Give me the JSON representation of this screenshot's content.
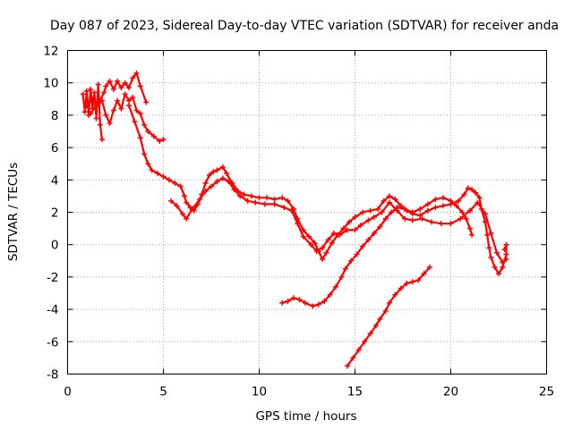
{
  "chart_data": {
    "type": "scatter",
    "title": "Day 087 of 2023, Sidereal Day-to-day VTEC variation (SDTVAR) for receiver anda",
    "xlabel": "GPS time / hours",
    "ylabel": "SDTVAR / TECUs",
    "xlim": [
      0,
      25
    ],
    "ylim": [
      -8,
      12
    ],
    "xticks": [
      0,
      5,
      10,
      15,
      20,
      25
    ],
    "yticks": [
      -8,
      -6,
      -4,
      -2,
      0,
      2,
      4,
      6,
      8,
      10,
      12
    ],
    "grid": true,
    "legend": "none",
    "colors": {
      "series": "#ff0000"
    },
    "series": [
      {
        "segments": [
          [
            [
              0.8,
              9.3
            ],
            [
              0.9,
              8.2
            ],
            [
              1.0,
              9.5
            ],
            [
              1.1,
              8.0
            ],
            [
              1.2,
              9.6
            ],
            [
              1.3,
              8.4
            ],
            [
              1.4,
              9.4
            ],
            [
              1.5,
              7.8
            ],
            [
              1.6,
              9.9
            ],
            [
              1.7,
              7.4
            ],
            [
              1.8,
              6.5
            ]
          ],
          [
            [
              1.0,
              8.6
            ],
            [
              1.3,
              9.0
            ],
            [
              1.6,
              8.7
            ],
            [
              1.9,
              9.4
            ],
            [
              2.0,
              9.8
            ],
            [
              2.2,
              10.1
            ],
            [
              2.4,
              9.6
            ],
            [
              2.6,
              10.1
            ],
            [
              2.8,
              9.7
            ],
            [
              3.0,
              10.0
            ],
            [
              3.2,
              9.7
            ],
            [
              3.4,
              10.3
            ],
            [
              3.6,
              10.6
            ],
            [
              3.8,
              9.8
            ],
            [
              4.1,
              8.8
            ]
          ],
          [
            [
              1.2,
              8.1
            ],
            [
              1.5,
              8.6
            ],
            [
              1.8,
              8.9
            ],
            [
              2.0,
              8.0
            ],
            [
              2.2,
              7.5
            ],
            [
              2.4,
              8.3
            ],
            [
              2.6,
              8.9
            ],
            [
              2.8,
              8.4
            ],
            [
              3.0,
              9.3
            ],
            [
              3.2,
              8.9
            ],
            [
              3.4,
              9.1
            ],
            [
              3.6,
              8.3
            ],
            [
              3.8,
              8.1
            ],
            [
              4.0,
              7.4
            ],
            [
              4.2,
              7.0
            ],
            [
              4.5,
              6.7
            ],
            [
              4.8,
              6.4
            ],
            [
              5.0,
              6.5
            ]
          ],
          [
            [
              3.2,
              8.6
            ],
            [
              3.5,
              7.6
            ],
            [
              3.8,
              6.6
            ],
            [
              4.0,
              5.6
            ],
            [
              4.2,
              5.0
            ],
            [
              4.4,
              4.6
            ],
            [
              4.7,
              4.4
            ],
            [
              5.0,
              4.2
            ],
            [
              5.3,
              4.0
            ],
            [
              5.6,
              3.8
            ],
            [
              5.9,
              3.6
            ],
            [
              6.1,
              3.0
            ],
            [
              6.2,
              2.6
            ],
            [
              6.4,
              2.3
            ],
            [
              6.6,
              2.1
            ],
            [
              6.8,
              2.5
            ],
            [
              7.0,
              3.1
            ],
            [
              7.2,
              3.8
            ],
            [
              7.4,
              4.3
            ],
            [
              7.6,
              4.5
            ],
            [
              7.8,
              4.6
            ],
            [
              8.1,
              4.8
            ],
            [
              8.3,
              4.4
            ],
            [
              8.6,
              3.8
            ],
            [
              8.9,
              3.3
            ],
            [
              9.2,
              3.1
            ],
            [
              9.6,
              3.0
            ],
            [
              10.0,
              2.9
            ],
            [
              10.4,
              2.9
            ],
            [
              10.8,
              2.8
            ],
            [
              11.2,
              2.9
            ],
            [
              11.5,
              2.7
            ],
            [
              11.8,
              2.2
            ],
            [
              12.0,
              1.6
            ],
            [
              12.3,
              0.9
            ],
            [
              12.6,
              0.5
            ],
            [
              12.9,
              0.1
            ],
            [
              13.1,
              -0.4
            ],
            [
              13.3,
              -0.9
            ],
            [
              13.5,
              -0.5
            ],
            [
              13.8,
              0.1
            ],
            [
              14.1,
              0.6
            ],
            [
              14.4,
              1.0
            ],
            [
              14.7,
              1.4
            ],
            [
              15.0,
              1.7
            ],
            [
              15.4,
              2.0
            ],
            [
              15.8,
              2.1
            ],
            [
              16.2,
              2.2
            ],
            [
              16.5,
              2.7
            ],
            [
              16.8,
              3.0
            ],
            [
              17.1,
              2.8
            ],
            [
              17.4,
              2.4
            ],
            [
              17.7,
              2.1
            ],
            [
              18.0,
              1.9
            ],
            [
              18.4,
              1.8
            ],
            [
              18.8,
              2.1
            ],
            [
              19.2,
              2.3
            ],
            [
              19.6,
              2.4
            ],
            [
              20.0,
              2.5
            ],
            [
              20.4,
              2.7
            ],
            [
              20.7,
              3.1
            ],
            [
              20.9,
              3.5
            ],
            [
              21.1,
              3.4
            ],
            [
              21.3,
              3.2
            ],
            [
              21.5,
              2.9
            ],
            [
              21.6,
              2.2
            ],
            [
              21.8,
              1.4
            ],
            [
              21.9,
              0.6
            ],
            [
              22.0,
              -0.2
            ],
            [
              22.1,
              -0.8
            ],
            [
              22.3,
              -1.4
            ],
            [
              22.5,
              -1.8
            ],
            [
              22.7,
              -1.4
            ],
            [
              22.9,
              -0.6
            ],
            [
              22.9,
              0.0
            ],
            [
              22.8,
              -0.3
            ]
          ],
          [
            [
              5.4,
              2.7
            ],
            [
              5.7,
              2.4
            ],
            [
              6.0,
              1.9
            ],
            [
              6.2,
              1.6
            ],
            [
              6.5,
              2.2
            ],
            [
              6.9,
              2.8
            ],
            [
              7.2,
              3.3
            ],
            [
              7.5,
              3.6
            ],
            [
              7.8,
              3.9
            ],
            [
              8.1,
              4.1
            ],
            [
              8.4,
              3.9
            ],
            [
              8.7,
              3.4
            ],
            [
              9.0,
              3.0
            ],
            [
              9.4,
              2.7
            ],
            [
              9.8,
              2.6
            ],
            [
              10.3,
              2.5
            ],
            [
              10.8,
              2.5
            ],
            [
              11.3,
              2.3
            ],
            [
              11.7,
              2.1
            ],
            [
              12.0,
              1.3
            ],
            [
              12.3,
              0.5
            ],
            [
              12.7,
              0.0
            ],
            [
              13.0,
              -0.4
            ],
            [
              13.3,
              -0.2
            ],
            [
              13.6,
              0.3
            ],
            [
              13.9,
              0.7
            ],
            [
              14.2,
              0.6
            ],
            [
              14.6,
              0.9
            ],
            [
              15.0,
              0.9
            ],
            [
              15.3,
              1.2
            ],
            [
              15.7,
              1.5
            ],
            [
              16.0,
              1.7
            ],
            [
              16.4,
              2.0
            ],
            [
              16.8,
              2.6
            ],
            [
              17.2,
              2.1
            ],
            [
              17.6,
              1.6
            ],
            [
              18.0,
              1.5
            ],
            [
              18.5,
              1.6
            ],
            [
              19.0,
              1.4
            ],
            [
              19.5,
              1.3
            ],
            [
              20.0,
              1.3
            ],
            [
              20.5,
              1.6
            ],
            [
              21.0,
              2.1
            ],
            [
              21.4,
              2.6
            ],
            [
              21.8,
              1.9
            ],
            [
              22.1,
              0.7
            ],
            [
              22.4,
              -0.5
            ],
            [
              22.7,
              -1.1
            ],
            [
              22.9,
              -0.9
            ]
          ],
          [
            [
              11.2,
              -3.6
            ],
            [
              11.5,
              -3.5
            ],
            [
              11.8,
              -3.3
            ],
            [
              12.1,
              -3.4
            ],
            [
              12.4,
              -3.6
            ],
            [
              12.8,
              -3.8
            ],
            [
              13.1,
              -3.7
            ],
            [
              13.4,
              -3.5
            ],
            [
              13.7,
              -3.1
            ],
            [
              14.0,
              -2.6
            ],
            [
              14.3,
              -2.0
            ],
            [
              14.5,
              -1.5
            ],
            [
              14.8,
              -1.0
            ],
            [
              15.1,
              -0.6
            ],
            [
              15.4,
              -0.1
            ],
            [
              15.7,
              0.3
            ],
            [
              16.0,
              0.7
            ],
            [
              16.3,
              1.1
            ],
            [
              16.6,
              1.6
            ],
            [
              16.9,
              2.0
            ],
            [
              17.2,
              2.3
            ],
            [
              17.6,
              2.2
            ],
            [
              18.0,
              2.0
            ],
            [
              18.4,
              2.2
            ],
            [
              18.8,
              2.5
            ],
            [
              19.2,
              2.8
            ],
            [
              19.6,
              2.9
            ],
            [
              20.0,
              2.7
            ],
            [
              20.3,
              2.4
            ],
            [
              20.6,
              2.0
            ],
            [
              20.8,
              1.6
            ],
            [
              21.0,
              1.0
            ],
            [
              21.1,
              0.6
            ]
          ],
          [
            [
              14.6,
              -7.5
            ],
            [
              14.9,
              -7.0
            ],
            [
              15.2,
              -6.5
            ],
            [
              15.5,
              -6.0
            ],
            [
              15.8,
              -5.5
            ],
            [
              16.1,
              -5.0
            ],
            [
              16.3,
              -4.6
            ],
            [
              16.6,
              -4.1
            ],
            [
              16.8,
              -3.6
            ],
            [
              17.1,
              -3.1
            ],
            [
              17.4,
              -2.7
            ],
            [
              17.7,
              -2.4
            ],
            [
              18.0,
              -2.3
            ],
            [
              18.3,
              -2.2
            ],
            [
              18.6,
              -1.8
            ],
            [
              18.9,
              -1.4
            ]
          ]
        ]
      }
    ]
  }
}
